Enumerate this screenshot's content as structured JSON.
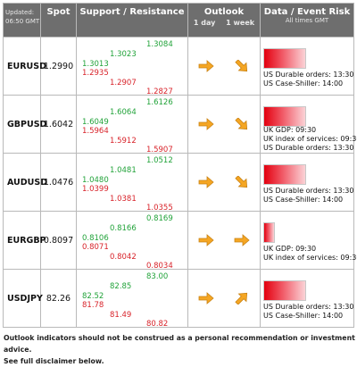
{
  "header": {
    "updated_label": "Updated:",
    "updated_time": "06:50 GMT",
    "spot": "Spot",
    "support_resistance": "Support / Resistance",
    "outlook": "Outlook",
    "outlook_day": "1 day",
    "outlook_week": "1 week",
    "data_event_risk": "Data / Event Risk",
    "all_times": "All times GMT"
  },
  "rows": [
    {
      "pair": "EURUSD",
      "spot": "1.2990",
      "s1": "1.2935",
      "s2": "1.2907",
      "s3": "1.2827",
      "r1": "1.3013",
      "r2": "1.3023",
      "r3": "1.3084",
      "outlook_day": "right",
      "outlook_week": "down-right",
      "risk_level": 0.85,
      "events": [
        "US Durable orders: 13:30",
        "US Case-Shiller: 14:00"
      ]
    },
    {
      "pair": "GBPUSD",
      "spot": "1.6042",
      "s1": "1.5964",
      "s2": "1.5912",
      "s3": "1.5907",
      "r1": "1.6049",
      "r2": "1.6064",
      "r3": "1.6126",
      "outlook_day": "right",
      "outlook_week": "down-right",
      "risk_level": 0.85,
      "events": [
        "UK GDP: 09:30",
        "UK index of services: 09:30",
        "US Durable orders: 13:30"
      ]
    },
    {
      "pair": "AUDUSD",
      "spot": "1.0476",
      "s1": "1.0399",
      "s2": "1.0381",
      "s3": "1.0355",
      "r1": "1.0480",
      "r2": "1.0481",
      "r3": "1.0512",
      "outlook_day": "right",
      "outlook_week": "down-right",
      "risk_level": 0.85,
      "events": [
        "US Durable orders: 13:30",
        "US Case-Shiller: 14:00"
      ]
    },
    {
      "pair": "EURGBP",
      "spot": "0.8097",
      "s1": "0.8071",
      "s2": "0.8042",
      "s3": "0.8034",
      "r1": "0.8106",
      "r2": "0.8166",
      "r3": "0.8169",
      "outlook_day": "right",
      "outlook_week": "right",
      "risk_level": 0.2,
      "events": [
        "UK GDP: 09:30",
        "UK index of services: 09:30"
      ]
    },
    {
      "pair": "USDJPY",
      "spot": "82.26",
      "s1": "81.78",
      "s2": "81.49",
      "s3": "80.82",
      "r1": "82.52",
      "r2": "82.85",
      "r3": "83.00",
      "outlook_day": "right",
      "outlook_week": "up-right",
      "risk_level": 0.85,
      "events": [
        "US Durable orders: 13:30",
        "US Case-Shiller: 14:00"
      ]
    }
  ],
  "footer": {
    "line1": "Outlook indicators should not be construed as a personal recommendation or investment advice.",
    "line2": "See full disclaimer below."
  },
  "colors": {
    "header_bg": "#6e6e6e",
    "support": "#d8232a",
    "resistance": "#22a33a",
    "arrow": "#f5a623",
    "risk_bar": "#e3000f"
  }
}
